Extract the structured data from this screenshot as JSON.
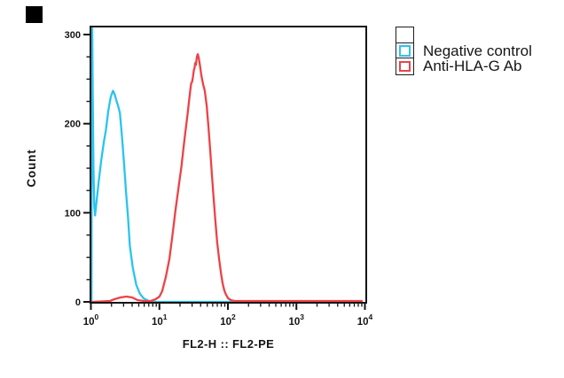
{
  "figure": {
    "background": "#ffffff",
    "corner_marker": {
      "visible": true,
      "color": "#000000"
    }
  },
  "legend": {
    "border_color": "#1d1d1d",
    "items": [
      {
        "label": "",
        "swatch_color": null
      },
      {
        "label": "Negative control",
        "swatch_color": "#2fc3ee"
      },
      {
        "label": "Anti-HLA-G Ab",
        "swatch_color": "#ea4449"
      }
    ]
  },
  "chart_data": {
    "type": "line",
    "subtype": "flow-cytometry-histogram",
    "title": "",
    "xlabel": "FL2-H :: FL2-PE",
    "ylabel": "Count",
    "x_scale": "log",
    "xlim": [
      1,
      10000
    ],
    "ylim": [
      0,
      308
    ],
    "y_ticks": [
      0,
      100,
      200,
      300
    ],
    "y_minor_step": 25,
    "x_tick_base": 10,
    "x_tick_exponents": [
      0,
      1,
      2,
      3,
      4
    ],
    "grid": false,
    "legend_position": "outside-top-right",
    "axis_color": "#141414",
    "series": [
      {
        "name": "Negative control",
        "slug": "negative-control",
        "color": "#29c3f1",
        "points": [
          [
            1.02,
            0
          ],
          [
            1.03,
            240
          ],
          [
            1.045,
            307
          ],
          [
            1.06,
            240
          ],
          [
            1.09,
            150
          ],
          [
            1.12,
            108
          ],
          [
            1.15,
            97
          ],
          [
            1.2,
            110
          ],
          [
            1.3,
            135
          ],
          [
            1.42,
            160
          ],
          [
            1.55,
            180
          ],
          [
            1.65,
            192
          ],
          [
            1.8,
            215
          ],
          [
            1.95,
            230
          ],
          [
            2.1,
            237
          ],
          [
            2.22,
            233
          ],
          [
            2.35,
            226
          ],
          [
            2.5,
            220
          ],
          [
            2.65,
            212
          ],
          [
            2.85,
            185
          ],
          [
            3.05,
            155
          ],
          [
            3.25,
            125
          ],
          [
            3.5,
            93
          ],
          [
            3.7,
            63
          ],
          [
            4.1,
            38
          ],
          [
            4.6,
            19
          ],
          [
            5.2,
            9
          ],
          [
            5.9,
            4
          ],
          [
            6.6,
            2
          ],
          [
            7.5,
            0
          ],
          [
            9000,
            0
          ]
        ]
      },
      {
        "name": "Anti-HLA-G Ab",
        "slug": "anti-hla-g-ab",
        "color": "#ee4145",
        "points": [
          [
            1.05,
            0
          ],
          [
            1.9,
            1
          ],
          [
            2.2,
            3
          ],
          [
            2.7,
            5
          ],
          [
            3.3,
            6
          ],
          [
            4.0,
            5
          ],
          [
            4.8,
            2
          ],
          [
            6.0,
            1
          ],
          [
            7.5,
            1
          ],
          [
            8.8,
            3
          ],
          [
            10.0,
            6
          ],
          [
            11.0,
            12
          ],
          [
            12.4,
            28
          ],
          [
            14.0,
            48
          ],
          [
            15.5,
            75
          ],
          [
            17.2,
            103
          ],
          [
            19.0,
            128
          ],
          [
            21.0,
            152
          ],
          [
            23.2,
            182
          ],
          [
            25.5,
            208
          ],
          [
            27.5,
            230
          ],
          [
            29.0,
            245
          ],
          [
            30.0,
            247
          ],
          [
            30.8,
            252
          ],
          [
            31.8,
            260
          ],
          [
            32.5,
            262
          ],
          [
            33.3,
            268
          ],
          [
            34.1,
            266
          ],
          [
            35.2,
            275
          ],
          [
            36.3,
            278
          ],
          [
            37.5,
            274
          ],
          [
            39.0,
            266
          ],
          [
            41.0,
            254
          ],
          [
            43.5,
            244
          ],
          [
            46.0,
            237
          ],
          [
            49.0,
            220
          ],
          [
            52.0,
            196
          ],
          [
            55.5,
            168
          ],
          [
            58.5,
            142
          ],
          [
            62.0,
            115
          ],
          [
            66.0,
            88
          ],
          [
            70.0,
            66
          ],
          [
            74.5,
            48
          ],
          [
            79.0,
            33
          ],
          [
            83.5,
            21
          ],
          [
            88.5,
            13
          ],
          [
            94.0,
            8
          ],
          [
            101,
            4
          ],
          [
            110,
            2
          ],
          [
            125,
            1
          ],
          [
            160,
            1
          ],
          [
            9000,
            1
          ]
        ]
      }
    ]
  }
}
